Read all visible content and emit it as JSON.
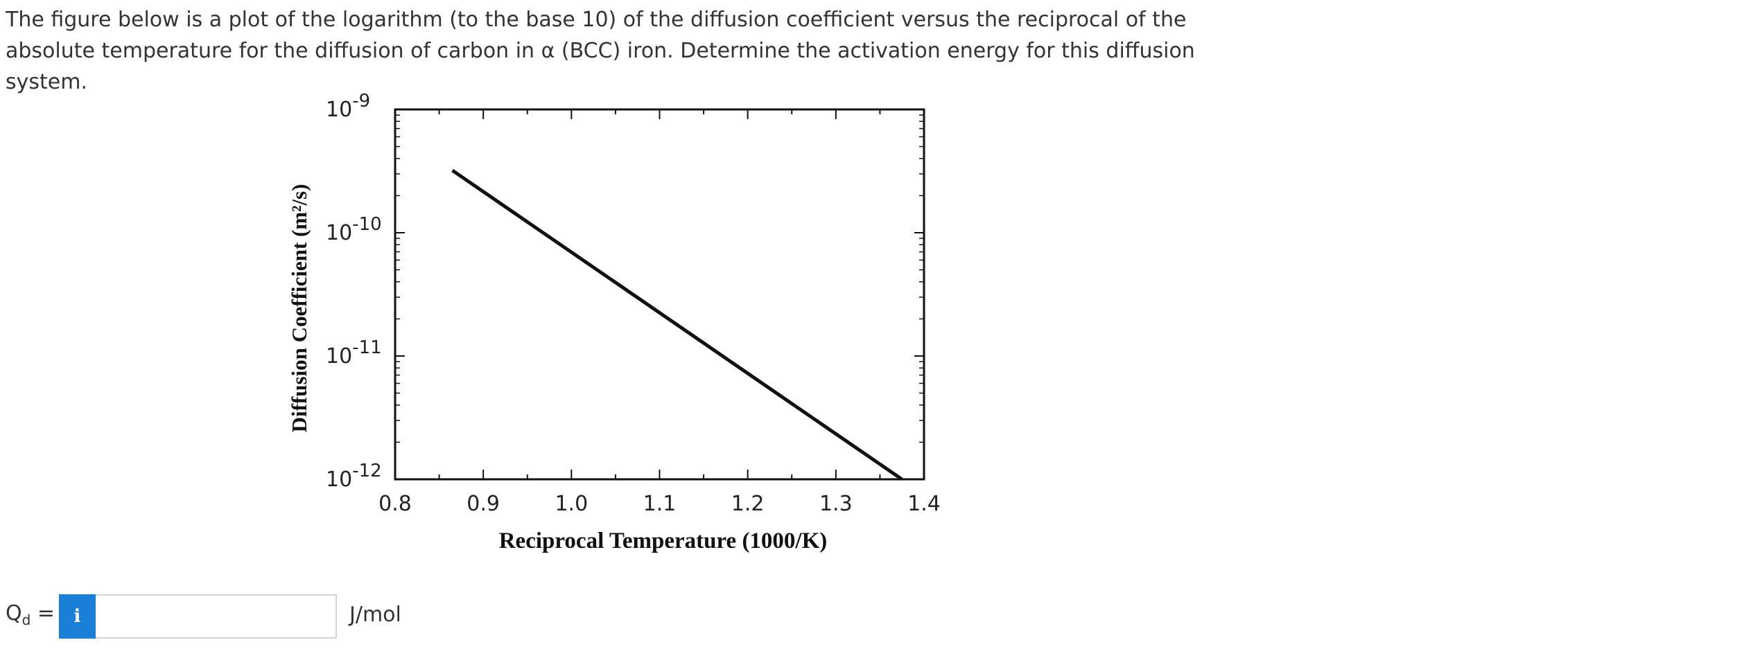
{
  "question": {
    "text": "The figure below is a plot of the logarithm (to the base 10) of the diffusion coefficient versus the reciprocal of the absolute temperature for the diffusion of carbon in α (BCC) iron. Determine the activation energy for this diffusion system."
  },
  "chart_data": {
    "type": "line",
    "title": "",
    "xlabel": "Reciprocal Temperature (1000/K)",
    "ylabel": "Diffusion Coefficient (m²/s)",
    "xlim": [
      0.8,
      1.4
    ],
    "ylim_log10": [
      -12,
      -9
    ],
    "y_scale": "log",
    "x_ticks": [
      "0.8",
      "0.9",
      "1.0",
      "1.1",
      "1.2",
      "1.3",
      "1.4"
    ],
    "y_ticks": [
      {
        "base": "10",
        "exp": "-9"
      },
      {
        "base": "10",
        "exp": "-10"
      },
      {
        "base": "10",
        "exp": "-11"
      },
      {
        "base": "10",
        "exp": "-12"
      }
    ],
    "series": [
      {
        "x": [
          0.865,
          1.375
        ],
        "y": [
          3.2e-10,
          1e-12
        ]
      }
    ],
    "grid": false,
    "line_color": "#111111"
  },
  "answer": {
    "label_main": "Q",
    "label_sub": "d",
    "label_eq": " =",
    "info_icon": "i",
    "input_value": "",
    "input_placeholder": "",
    "unit": "J/mol",
    "accent_color": "#1a7fd6"
  }
}
